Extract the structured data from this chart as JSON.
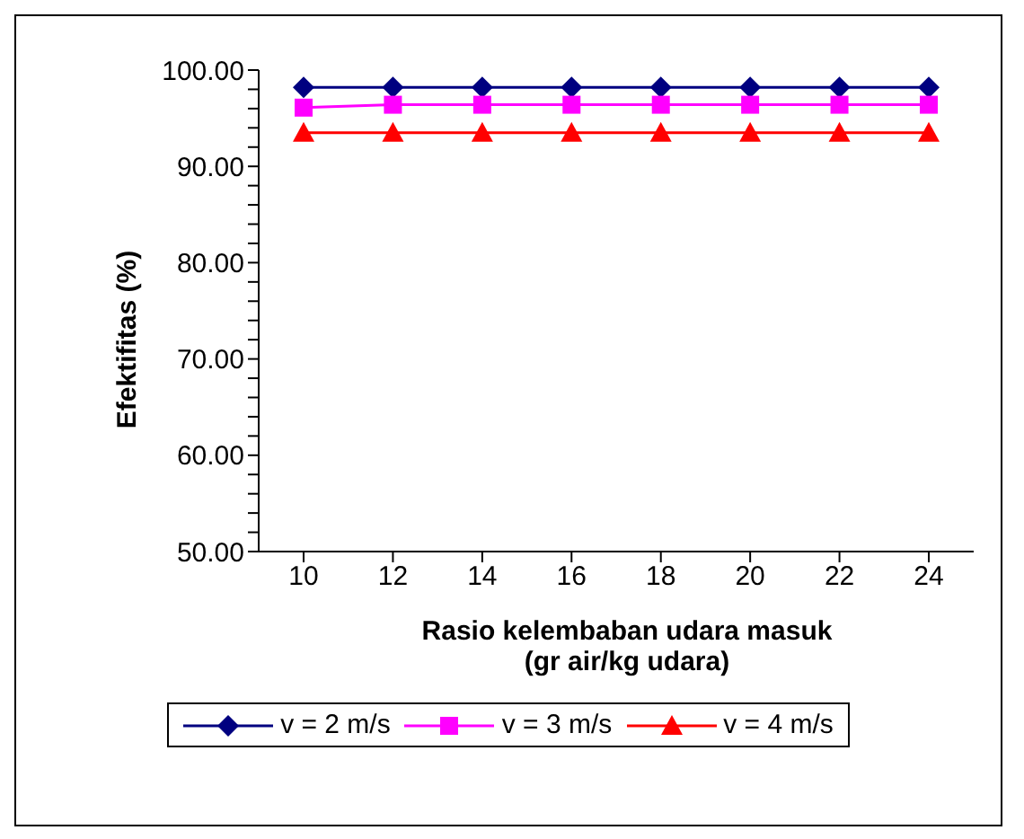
{
  "chart_data": {
    "type": "line",
    "xlabel": "Rasio kelembaban udara masuk (gr air/kg udara)",
    "ylabel": "Efektifitas (%)",
    "categories": [
      "10",
      "12",
      "14",
      "16",
      "18",
      "20",
      "22",
      "24"
    ],
    "series": [
      {
        "name": "v = 2 m/s",
        "color": "#000080",
        "marker": "diamond",
        "values": [
          98.2,
          98.2,
          98.2,
          98.2,
          98.2,
          98.2,
          98.2,
          98.2
        ]
      },
      {
        "name": "v = 3 m/s",
        "color": "#ff00ff",
        "marker": "square",
        "values": [
          96.1,
          96.4,
          96.4,
          96.4,
          96.4,
          96.4,
          96.4,
          96.4
        ]
      },
      {
        "name": "v = 4 m/s",
        "color": "#ff0000",
        "marker": "triangle",
        "values": [
          93.5,
          93.5,
          93.5,
          93.5,
          93.5,
          93.5,
          93.5,
          93.5
        ]
      }
    ],
    "ylim": [
      50,
      100
    ],
    "yticks": [
      {
        "value": 50,
        "label": "50.00"
      },
      {
        "value": 52,
        "label": null
      },
      {
        "value": 54,
        "label": null
      },
      {
        "value": 56,
        "label": null
      },
      {
        "value": 58,
        "label": null
      },
      {
        "value": 60,
        "label": "60.00"
      },
      {
        "value": 62,
        "label": null
      },
      {
        "value": 64,
        "label": null
      },
      {
        "value": 66,
        "label": null
      },
      {
        "value": 68,
        "label": null
      },
      {
        "value": 70,
        "label": "70.00"
      },
      {
        "value": 72,
        "label": null
      },
      {
        "value": 74,
        "label": null
      },
      {
        "value": 76,
        "label": null
      },
      {
        "value": 78,
        "label": null
      },
      {
        "value": 80,
        "label": "80.00"
      },
      {
        "value": 82,
        "label": null
      },
      {
        "value": 84,
        "label": null
      },
      {
        "value": 86,
        "label": null
      },
      {
        "value": 88,
        "label": null
      },
      {
        "value": 90,
        "label": "90.00"
      },
      {
        "value": 92,
        "label": null
      },
      {
        "value": 94,
        "label": null
      },
      {
        "value": 96,
        "label": null
      },
      {
        "value": 98,
        "label": null
      },
      {
        "value": 100,
        "label": "100.00"
      }
    ],
    "grid": false,
    "legend": "bottom",
    "line_style": "solid"
  }
}
